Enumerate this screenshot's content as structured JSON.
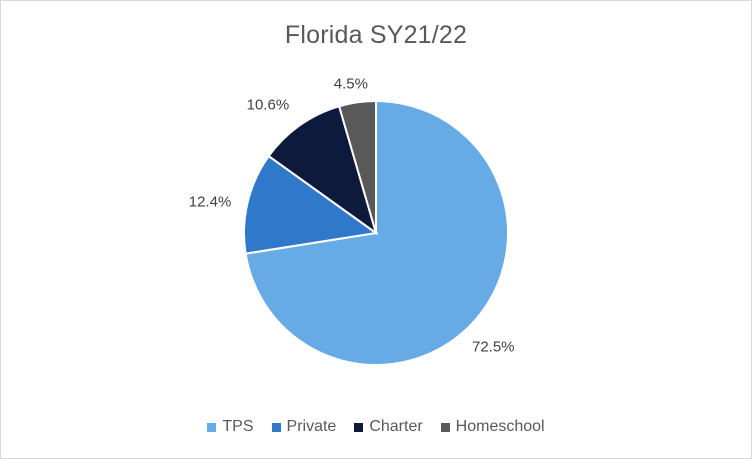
{
  "chart_data": {
    "type": "pie",
    "title": "Florida SY21/22",
    "categories": [
      "TPS",
      "Private",
      "Charter",
      "Homeschool"
    ],
    "values": [
      72.5,
      12.4,
      10.6,
      4.5
    ],
    "labels": [
      "72.5%",
      "12.4%",
      "10.6%",
      "4.5%"
    ],
    "colors": [
      "#66aae6",
      "#2f78ca",
      "#0e1a3c",
      "#595959"
    ],
    "legend_position": "bottom",
    "start_angle": "12 o'clock",
    "direction": "clockwise"
  }
}
